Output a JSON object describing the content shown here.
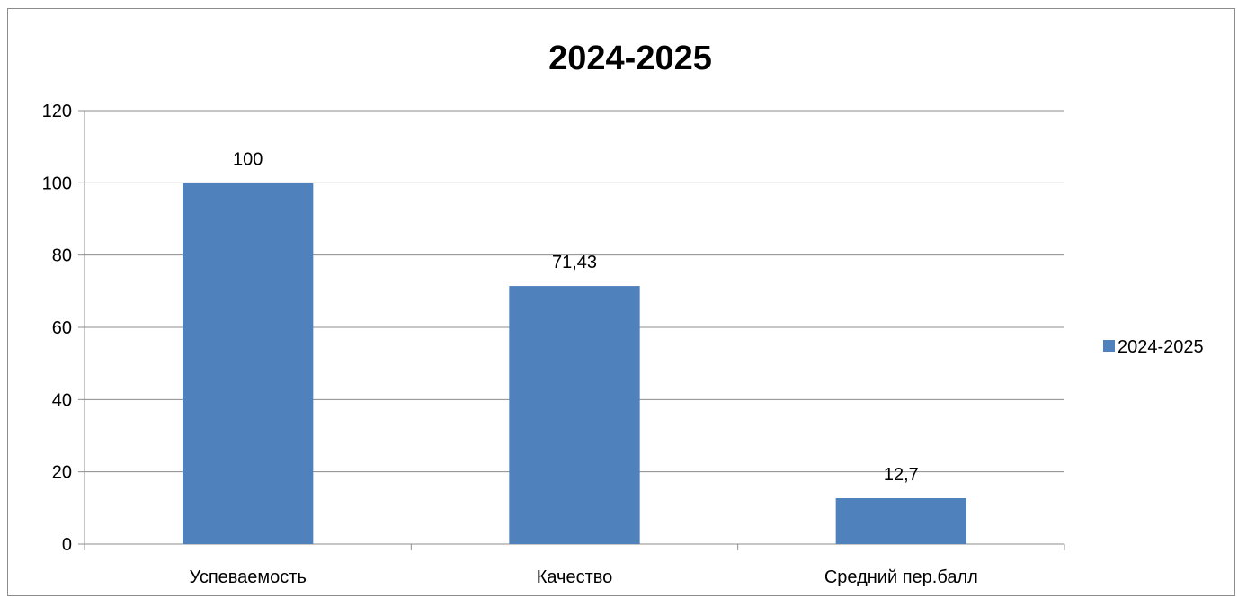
{
  "chart_data": {
    "type": "bar",
    "title": "2024-2025",
    "categories": [
      "Успеваемость",
      "Качество",
      "Средний пер.балл"
    ],
    "series": [
      {
        "name": "2024-2025",
        "values": [
          100,
          71.43,
          12.7
        ],
        "value_labels": [
          "100",
          "71,43",
          "12,7"
        ],
        "color": "#4f81bd"
      }
    ],
    "y_ticks": [
      "0",
      "20",
      "40",
      "60",
      "80",
      "100",
      "120"
    ],
    "ylim": [
      0,
      120
    ],
    "xlabel": "",
    "ylabel": "",
    "grid": true,
    "legend_position": "right"
  }
}
